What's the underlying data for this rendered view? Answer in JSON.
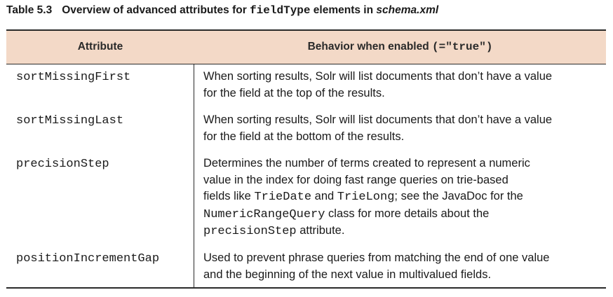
{
  "caption": {
    "number": "Table 5.3",
    "text_before": "Overview of advanced attributes for ",
    "code": "fieldType",
    "text_middle": " elements in ",
    "italic": "schema.xml"
  },
  "header": {
    "col1": "Attribute",
    "col2_text": "Behavior when enabled ",
    "col2_code": "(=\"true\")"
  },
  "rows": [
    {
      "attribute": "sortMissingFirst",
      "desc": [
        [
          {
            "t": "When sorting results, Solr will list documents that don’t have a value"
          }
        ],
        [
          {
            "t": "for the field at the top of the results."
          }
        ]
      ]
    },
    {
      "attribute": "sortMissingLast",
      "desc": [
        [
          {
            "t": "When sorting results, Solr will list documents that don’t have a value"
          }
        ],
        [
          {
            "t": "for the field at the bottom of the results."
          }
        ]
      ]
    },
    {
      "attribute": "precisionStep",
      "desc": [
        [
          {
            "t": "Determines the number of terms created to represent a numeric"
          }
        ],
        [
          {
            "t": "value in the index for doing fast range queries on trie-based"
          }
        ],
        [
          {
            "t": "fields like "
          },
          {
            "c": "TrieDate"
          },
          {
            "t": " and "
          },
          {
            "c": "TrieLong"
          },
          {
            "t": "; see the JavaDoc for the"
          }
        ],
        [
          {
            "c": "NumericRangeQuery"
          },
          {
            "t": " class for more details about the"
          }
        ],
        [
          {
            "c": "precisionStep"
          },
          {
            "t": " attribute."
          }
        ]
      ]
    },
    {
      "attribute": "positionIncrementGap",
      "desc": [
        [
          {
            "t": "Used to prevent phrase queries from matching the end of one value"
          }
        ],
        [
          {
            "t": "and the beginning of the next value in multivalued fields."
          }
        ]
      ]
    }
  ]
}
